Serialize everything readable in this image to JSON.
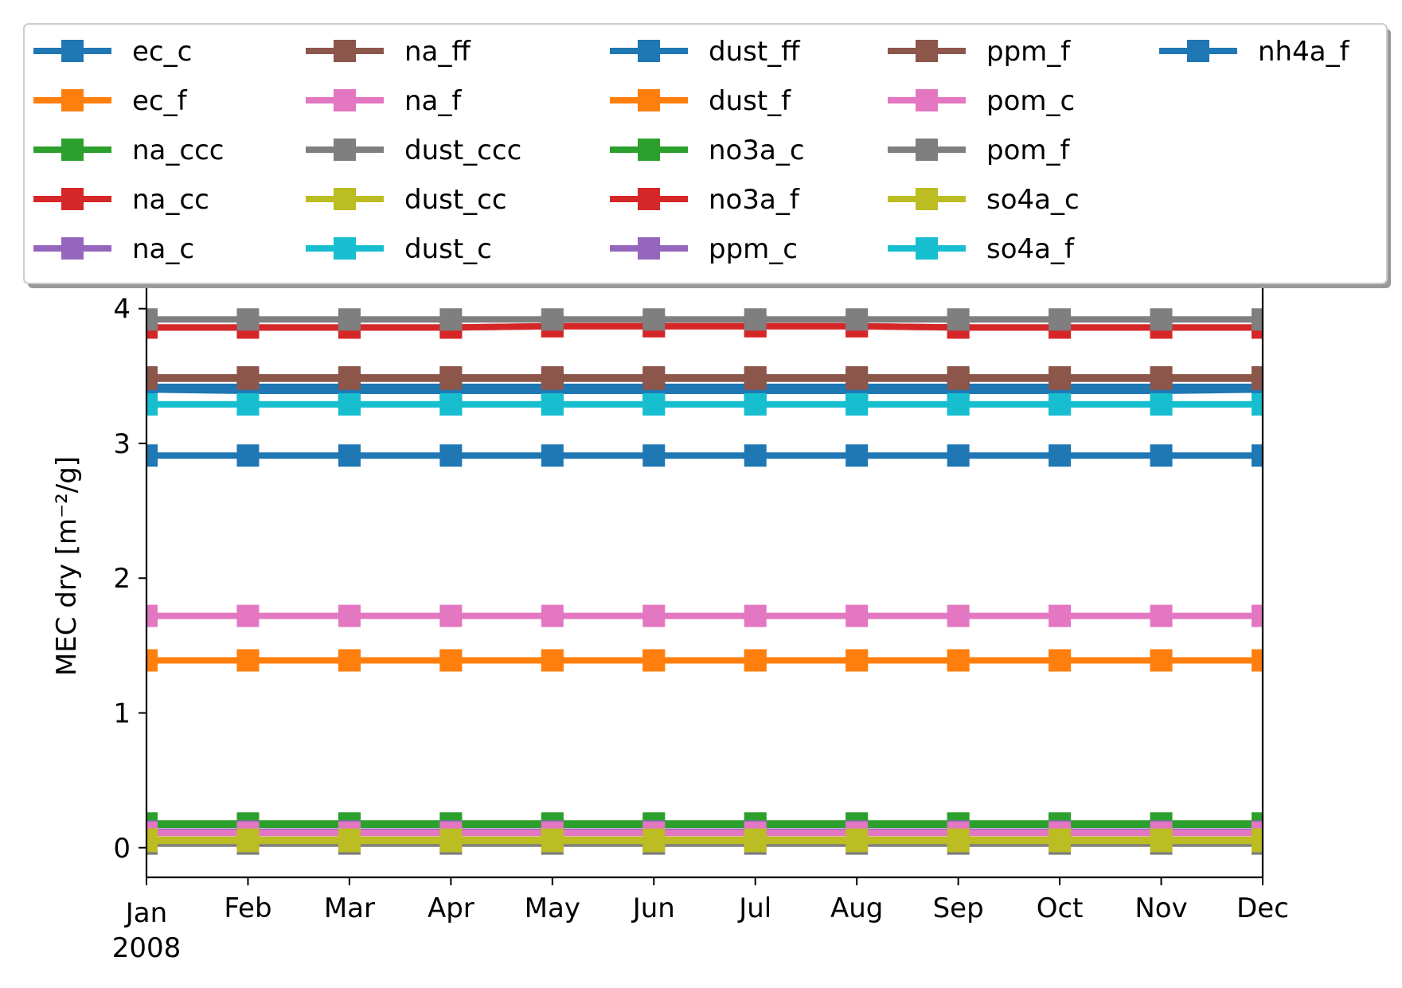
{
  "chart_data": {
    "type": "line",
    "title": "",
    "xlabel": "",
    "ylabel": "MEC dry [m⁻²/g]",
    "ylim": [
      -0.22,
      4.4
    ],
    "yticks": [
      0,
      1,
      2,
      3,
      4
    ],
    "ytick_labels": [
      "0",
      "1",
      "2",
      "3",
      "4"
    ],
    "x": [
      "2008-01",
      "2008-02",
      "2008-03",
      "2008-04",
      "2008-05",
      "2008-06",
      "2008-07",
      "2008-08",
      "2008-09",
      "2008-10",
      "2008-11",
      "2008-12"
    ],
    "xtick_labels": [
      "Jan",
      "Feb",
      "Mar",
      "Apr",
      "May",
      "Jun",
      "Jul",
      "Aug",
      "Sep",
      "Oct",
      "Nov",
      "Dec"
    ],
    "xtick_year": "2008",
    "grid": false,
    "legend_position": "top, above plot, 5 columns",
    "marker": "square",
    "series": [
      {
        "name": "ec_c",
        "color": "#1f77b4",
        "values": [
          3.42,
          3.42,
          3.42,
          3.42,
          3.42,
          3.42,
          3.42,
          3.42,
          3.42,
          3.42,
          3.42,
          3.42
        ]
      },
      {
        "name": "ec_f",
        "color": "#ff7f0e",
        "values": [
          1.39,
          1.39,
          1.39,
          1.39,
          1.39,
          1.39,
          1.39,
          1.39,
          1.39,
          1.39,
          1.39,
          1.39
        ]
      },
      {
        "name": "na_ccc",
        "color": "#2ca02c",
        "values": [
          0.17,
          0.17,
          0.17,
          0.17,
          0.17,
          0.17,
          0.17,
          0.17,
          0.17,
          0.17,
          0.17,
          0.17
        ]
      },
      {
        "name": "na_cc",
        "color": "#d62728",
        "values": [
          3.86,
          3.86,
          3.86,
          3.86,
          3.87,
          3.87,
          3.87,
          3.87,
          3.86,
          3.86,
          3.86,
          3.86
        ]
      },
      {
        "name": "na_c",
        "color": "#9467bd",
        "values": [
          0.11,
          0.11,
          0.11,
          0.11,
          0.11,
          0.11,
          0.11,
          0.11,
          0.11,
          0.11,
          0.11,
          0.11
        ]
      },
      {
        "name": "na_ff",
        "color": "#8c564b",
        "values": [
          3.49,
          3.49,
          3.49,
          3.49,
          3.49,
          3.49,
          3.49,
          3.49,
          3.49,
          3.49,
          3.49,
          3.49
        ]
      },
      {
        "name": "na_f",
        "color": "#e377c2",
        "values": [
          1.72,
          1.72,
          1.72,
          1.72,
          1.72,
          1.72,
          1.72,
          1.72,
          1.72,
          1.72,
          1.72,
          1.72
        ]
      },
      {
        "name": "dust_ccc",
        "color": "#7f7f7f",
        "values": [
          0.03,
          0.03,
          0.03,
          0.03,
          0.03,
          0.03,
          0.03,
          0.03,
          0.03,
          0.03,
          0.03,
          0.03
        ]
      },
      {
        "name": "dust_cc",
        "color": "#bcbd22",
        "values": [
          0.05,
          0.05,
          0.05,
          0.05,
          0.05,
          0.05,
          0.05,
          0.05,
          0.05,
          0.05,
          0.05,
          0.05
        ]
      },
      {
        "name": "dust_c",
        "color": "#17becf",
        "values": [
          3.29,
          3.29,
          3.29,
          3.29,
          3.29,
          3.29,
          3.29,
          3.29,
          3.29,
          3.29,
          3.29,
          3.29
        ]
      },
      {
        "name": "dust_ff",
        "color": "#1f77b4",
        "values": [
          3.4,
          3.39,
          3.39,
          3.39,
          3.39,
          3.39,
          3.39,
          3.39,
          3.39,
          3.39,
          3.39,
          3.4
        ]
      },
      {
        "name": "dust_f",
        "color": "#ff7f0e",
        "values": [
          1.39,
          1.39,
          1.39,
          1.39,
          1.39,
          1.39,
          1.39,
          1.39,
          1.39,
          1.39,
          1.39,
          1.39
        ]
      },
      {
        "name": "no3a_c",
        "color": "#2ca02c",
        "values": [
          0.18,
          0.18,
          0.18,
          0.18,
          0.18,
          0.18,
          0.18,
          0.18,
          0.18,
          0.18,
          0.18,
          0.18
        ]
      },
      {
        "name": "no3a_f",
        "color": "#d62728",
        "values": [
          3.86,
          3.86,
          3.86,
          3.86,
          3.87,
          3.87,
          3.87,
          3.87,
          3.86,
          3.86,
          3.86,
          3.86
        ]
      },
      {
        "name": "ppm_c",
        "color": "#9467bd",
        "values": [
          0.12,
          0.12,
          0.12,
          0.12,
          0.12,
          0.12,
          0.12,
          0.12,
          0.12,
          0.12,
          0.12,
          0.12
        ]
      },
      {
        "name": "ppm_f",
        "color": "#8c564b",
        "values": [
          3.48,
          3.48,
          3.48,
          3.48,
          3.48,
          3.48,
          3.48,
          3.48,
          3.48,
          3.48,
          3.48,
          3.48
        ]
      },
      {
        "name": "pom_c",
        "color": "#e377c2",
        "values": [
          0.11,
          0.11,
          0.11,
          0.11,
          0.11,
          0.11,
          0.11,
          0.11,
          0.11,
          0.11,
          0.11,
          0.11
        ]
      },
      {
        "name": "pom_f",
        "color": "#7f7f7f",
        "values": [
          3.92,
          3.92,
          3.92,
          3.92,
          3.92,
          3.92,
          3.92,
          3.92,
          3.92,
          3.92,
          3.92,
          3.92
        ]
      },
      {
        "name": "so4a_c",
        "color": "#bcbd22",
        "values": [
          0.06,
          0.06,
          0.06,
          0.06,
          0.06,
          0.06,
          0.06,
          0.06,
          0.06,
          0.06,
          0.06,
          0.06
        ]
      },
      {
        "name": "so4a_f",
        "color": "#17becf",
        "values": [
          3.29,
          3.29,
          3.29,
          3.29,
          3.29,
          3.29,
          3.29,
          3.29,
          3.29,
          3.29,
          3.29,
          3.29
        ]
      },
      {
        "name": "nh4a_f",
        "color": "#1f77b4",
        "values": [
          2.91,
          2.91,
          2.91,
          2.91,
          2.91,
          2.91,
          2.91,
          2.91,
          2.91,
          2.91,
          2.91,
          2.91
        ]
      }
    ]
  }
}
